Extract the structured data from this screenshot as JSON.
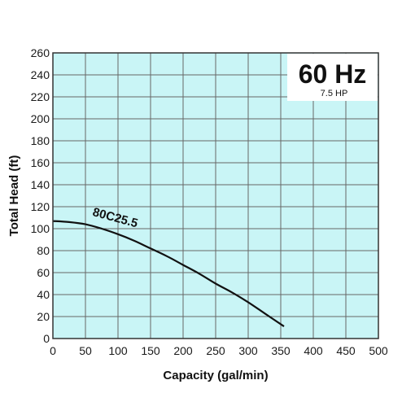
{
  "chart_data": {
    "type": "line",
    "title": "",
    "xlabel": "Capacity (gal/min)",
    "ylabel": "Total Head (ft)",
    "xlim": [
      0,
      500
    ],
    "ylim": [
      0,
      260
    ],
    "x_ticks": [
      "0",
      "50",
      "100",
      "150",
      "200",
      "250",
      "300",
      "350",
      "400",
      "450",
      "500"
    ],
    "y_ticks": [
      "0",
      "20",
      "40",
      "60",
      "80",
      "100",
      "120",
      "140",
      "160",
      "180",
      "200",
      "220",
      "240",
      "260"
    ],
    "grid": true,
    "badge": {
      "frequency": "60 Hz",
      "power": "7.5 HP"
    },
    "series": [
      {
        "name": "80C25.5",
        "x": [
          0,
          25,
          50,
          75,
          100,
          125,
          150,
          175,
          200,
          225,
          250,
          275,
          300,
          325,
          355
        ],
        "y": [
          107,
          106,
          104,
          100,
          95,
          89,
          82,
          75,
          67,
          59,
          50,
          42,
          33,
          23,
          11
        ]
      }
    ]
  },
  "colors": {
    "plot_background": "#c9f5f6",
    "grid": "#666666",
    "curve": "#111111",
    "badge_background": "#ffffff"
  }
}
